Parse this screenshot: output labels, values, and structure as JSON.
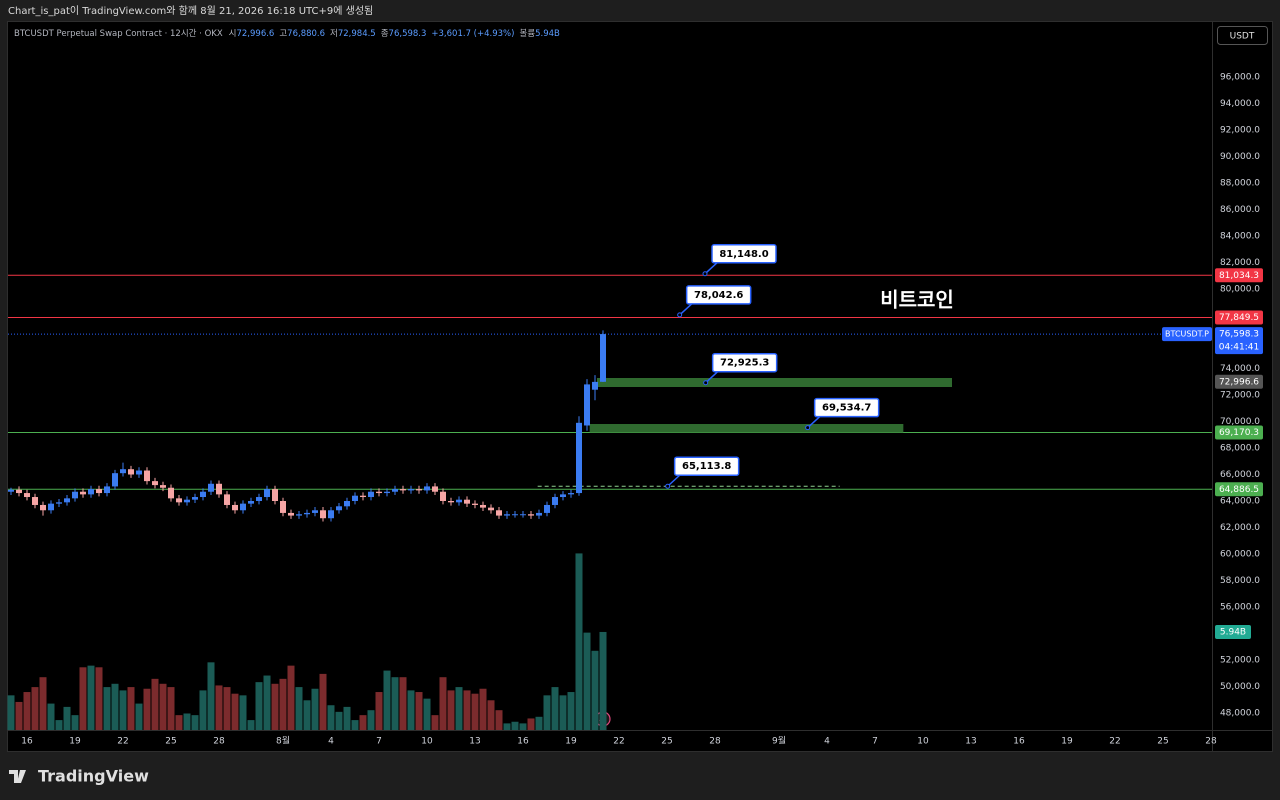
{
  "chart_data": {
    "type": "candlestick",
    "header": "Chart_is_pat이 TradingView.com와 함께 8월 21, 2026 16:18 UTC+9에 생성됨",
    "title": "BTCUSDT Perpetual Swap Contract · 12시간 · OKX",
    "legend": [
      {
        "label": "시",
        "text": "72,996.6"
      },
      {
        "label": "고",
        "text": "76,880.6"
      },
      {
        "label": "저",
        "text": "72,984.5"
      },
      {
        "label": "종",
        "text": "76,598.3"
      }
    ],
    "change": "+3,601.7 (+4.93%)",
    "volume_label": "볼륨",
    "currency": "USDT",
    "annotation": "비트코인",
    "brand": "TradingView",
    "colors": {
      "up": "#3b7cf2",
      "down": "#f6a5a5"
    },
    "x": [
      "2026-07-15T00:00",
      "2026-07-15T12:00",
      "2026-07-16T00:00",
      "2026-07-16T12:00",
      "2026-07-17T00:00",
      "2026-07-17T12:00",
      "2026-07-18T00:00",
      "2026-07-18T12:00",
      "2026-07-19T00:00",
      "2026-07-19T12:00",
      "2026-07-20T00:00",
      "2026-07-20T12:00",
      "2026-07-21T00:00",
      "2026-07-21T12:00",
      "2026-07-22T00:00",
      "2026-07-22T12:00",
      "2026-07-23T00:00",
      "2026-07-23T12:00",
      "2026-07-24T00:00",
      "2026-07-24T12:00",
      "2026-07-25T00:00",
      "2026-07-25T12:00",
      "2026-07-26T00:00",
      "2026-07-26T12:00",
      "2026-07-27T00:00",
      "2026-07-27T12:00",
      "2026-07-28T00:00",
      "2026-07-28T12:00",
      "2026-07-29T00:00",
      "2026-07-29T12:00",
      "2026-07-30T00:00",
      "2026-07-30T12:00",
      "2026-07-31T00:00",
      "2026-07-31T12:00",
      "2026-08-01T00:00",
      "2026-08-01T12:00",
      "2026-08-02T00:00",
      "2026-08-02T12:00",
      "2026-08-03T00:00",
      "2026-08-03T12:00",
      "2026-08-04T00:00",
      "2026-08-04T12:00",
      "2026-08-05T00:00",
      "2026-08-05T12:00",
      "2026-08-06T00:00",
      "2026-08-06T12:00",
      "2026-08-07T00:00",
      "2026-08-07T12:00",
      "2026-08-08T00:00",
      "2026-08-08T12:00",
      "2026-08-09T00:00",
      "2026-08-09T12:00",
      "2026-08-10T00:00",
      "2026-08-10T12:00",
      "2026-08-11T00:00",
      "2026-08-11T12:00",
      "2026-08-12T00:00",
      "2026-08-12T12:00",
      "2026-08-13T00:00",
      "2026-08-13T12:00",
      "2026-08-14T00:00",
      "2026-08-14T12:00",
      "2026-08-15T00:00",
      "2026-08-15T12:00",
      "2026-08-16T00:00",
      "2026-08-16T12:00",
      "2026-08-17T00:00",
      "2026-08-17T12:00",
      "2026-08-18T00:00",
      "2026-08-18T12:00",
      "2026-08-19T00:00",
      "2026-08-19T12:00",
      "2026-08-20T00:00",
      "2026-08-20T12:00",
      "2026-08-21T00:00"
    ],
    "open": [
      64700,
      64850,
      64600,
      64300,
      63700,
      63300,
      63800,
      63900,
      64200,
      64700,
      64500,
      64900,
      64600,
      65100,
      66100,
      66400,
      66000,
      66300,
      65500,
      65200,
      65000,
      64200,
      63900,
      64100,
      64300,
      64700,
      65300,
      64500,
      63700,
      63300,
      63800,
      64000,
      64300,
      64900,
      64000,
      63100,
      62900,
      63000,
      63100,
      63300,
      62700,
      63300,
      63600,
      64000,
      64400,
      64300,
      64700,
      64600,
      64700,
      64900,
      64800,
      64900,
      64800,
      65100,
      64700,
      64000,
      63900,
      64100,
      63800,
      63700,
      63500,
      63300,
      62900,
      63000,
      63000,
      63000,
      62900,
      63100,
      63700,
      64300,
      64500,
      64600,
      69700,
      72400,
      72996.6
    ],
    "high": [
      65000,
      65100,
      64850,
      64550,
      63950,
      64050,
      64150,
      64450,
      64950,
      64950,
      65150,
      65150,
      65350,
      66350,
      66900,
      66650,
      66550,
      66550,
      65750,
      65450,
      65250,
      64450,
      64350,
      64550,
      64950,
      65550,
      65550,
      64750,
      63950,
      64050,
      64250,
      64550,
      65150,
      65150,
      64250,
      63350,
      63250,
      63350,
      63550,
      63550,
      63550,
      63850,
      64250,
      64650,
      64650,
      64950,
      64950,
      64950,
      65150,
      65150,
      65150,
      65150,
      65350,
      65350,
      64950,
      64250,
      64350,
      64350,
      64050,
      63950,
      63750,
      63550,
      63250,
      63250,
      63250,
      63250,
      63350,
      63950,
      64550,
      64750,
      64850,
      70400,
      73200,
      73500,
      76880.6
    ],
    "low": [
      64450,
      64350,
      64050,
      63450,
      62900,
      63050,
      63550,
      63650,
      63950,
      64250,
      64250,
      64350,
      64350,
      64850,
      65850,
      65750,
      65750,
      65250,
      64950,
      64750,
      63950,
      63650,
      63650,
      63850,
      64050,
      64450,
      64250,
      63450,
      63050,
      63050,
      63550,
      63750,
      64050,
      63750,
      62850,
      62650,
      62650,
      62750,
      62850,
      62450,
      62450,
      63050,
      63350,
      63750,
      64050,
      64050,
      64350,
      64350,
      64450,
      64550,
      64550,
      64550,
      64550,
      64450,
      63750,
      63650,
      63650,
      63550,
      63450,
      63250,
      63050,
      62650,
      62650,
      62750,
      62750,
      62650,
      62650,
      62850,
      63450,
      64050,
      64250,
      64400,
      69300,
      71600,
      72984.5
    ],
    "close": [
      64850,
      64600,
      64300,
      63700,
      63300,
      63800,
      63900,
      64200,
      64700,
      64500,
      64900,
      64600,
      65100,
      66100,
      66400,
      66000,
      66300,
      65500,
      65200,
      65000,
      64200,
      63900,
      64100,
      64300,
      64700,
      65300,
      64500,
      63700,
      63300,
      63800,
      64000,
      64300,
      64900,
      64000,
      63100,
      62900,
      63000,
      63100,
      63300,
      62700,
      63300,
      63600,
      64000,
      64400,
      64300,
      64700,
      64600,
      64700,
      64900,
      64800,
      64900,
      64800,
      65100,
      64700,
      64000,
      63900,
      64100,
      63800,
      63700,
      63500,
      63300,
      62900,
      63000,
      63000,
      63000,
      62900,
      63100,
      63700,
      64300,
      64500,
      64600,
      69900,
      72800,
      72990,
      76598.3
    ],
    "volume": {
      "color_up": "#1b5c56",
      "color_down": "#7c2b2d",
      "color_tag": "#22ab94",
      "lim": [
        0,
        42.9
      ],
      "values": [
        2.1,
        1.7,
        2.3,
        2.6,
        3.2,
        1.6,
        0.6,
        1.4,
        0.9,
        3.8,
        3.9,
        3.8,
        2.6,
        2.8,
        2.4,
        2.6,
        1.6,
        2.5,
        3.1,
        2.8,
        2.6,
        0.9,
        1.0,
        0.9,
        2.4,
        4.1,
        2.7,
        2.6,
        2.2,
        2.1,
        0.6,
        2.9,
        3.3,
        2.8,
        3.1,
        3.9,
        2.6,
        1.8,
        2.5,
        3.4,
        1.5,
        1.1,
        1.4,
        0.6,
        0.9,
        1.2,
        2.3,
        3.6,
        3.2,
        3.2,
        2.4,
        2.3,
        1.9,
        0.9,
        3.2,
        2.4,
        2.6,
        2.4,
        2.2,
        2.5,
        1.8,
        1.2,
        0.4,
        0.5,
        0.4,
        0.7,
        0.8,
        2.1,
        2.6,
        2.1,
        2.3,
        10.7,
        5.9,
        4.8,
        5.94
      ],
      "value_labels": [
        null,
        null,
        null,
        null,
        null,
        null,
        null,
        null,
        null,
        null,
        null,
        null,
        null,
        null,
        null,
        null,
        null,
        null,
        null,
        null,
        null,
        null,
        null,
        null,
        null,
        null,
        null,
        null,
        null,
        null,
        null,
        null,
        null,
        null,
        null,
        null,
        null,
        null,
        null,
        null,
        null,
        null,
        null,
        null,
        null,
        null,
        null,
        null,
        null,
        null,
        null,
        null,
        null,
        null,
        null,
        null,
        null,
        null,
        null,
        null,
        null,
        null,
        null,
        null,
        null,
        null,
        null,
        null,
        null,
        null,
        null,
        null,
        null,
        null,
        "5.94B"
      ]
    },
    "xlim": [
      "2026-07-14T19:30",
      "2026-09-28T01:30"
    ],
    "xticks": [
      {
        "value": "2026-07-16T00:00",
        "label": "16"
      },
      {
        "value": "2026-07-19T00:00",
        "label": "19"
      },
      {
        "value": "2026-07-22T00:00",
        "label": "22"
      },
      {
        "value": "2026-07-25T00:00",
        "label": "25"
      },
      {
        "value": "2026-07-28T00:00",
        "label": "28"
      },
      {
        "value": "2026-08-01T00:00",
        "label": "8월"
      },
      {
        "value": "2026-08-04T00:00",
        "label": "4"
      },
      {
        "value": "2026-08-07T00:00",
        "label": "7"
      },
      {
        "value": "2026-08-10T00:00",
        "label": "10"
      },
      {
        "value": "2026-08-13T00:00",
        "label": "13"
      },
      {
        "value": "2026-08-16T00:00",
        "label": "16"
      },
      {
        "value": "2026-08-19T00:00",
        "label": "19"
      },
      {
        "value": "2026-08-22T00:00",
        "label": "22"
      },
      {
        "value": "2026-08-25T00:00",
        "label": "25"
      },
      {
        "value": "2026-08-28T00:00",
        "label": "28"
      },
      {
        "value": "2026-09-01T00:00",
        "label": "9월"
      },
      {
        "value": "2026-09-04T00:00",
        "label": "4"
      },
      {
        "value": "2026-09-07T00:00",
        "label": "7"
      },
      {
        "value": "2026-09-10T00:00",
        "label": "10"
      },
      {
        "value": "2026-09-13T00:00",
        "label": "13"
      },
      {
        "value": "2026-09-16T00:00",
        "label": "16"
      },
      {
        "value": "2026-09-19T00:00",
        "label": "19"
      },
      {
        "value": "2026-09-22T00:00",
        "label": "22"
      },
      {
        "value": "2026-09-25T00:00",
        "label": "25"
      },
      {
        "value": "2026-09-28T00:00",
        "label": "28"
      }
    ],
    "ylim": [
      46717,
      100151
    ],
    "yticks": [
      {
        "value": 96000,
        "label": "96,000.0"
      },
      {
        "value": 94000,
        "label": "94,000.0"
      },
      {
        "value": 92000,
        "label": "92,000.0"
      },
      {
        "value": 90000,
        "label": "90,000.0"
      },
      {
        "value": 88000,
        "label": "88,000.0"
      },
      {
        "value": 86000,
        "label": "86,000.0"
      },
      {
        "value": 84000,
        "label": "84,000.0"
      },
      {
        "value": 82000,
        "label": "82,000.0"
      },
      {
        "value": 80000,
        "label": "80,000.0"
      },
      {
        "value": 74000,
        "label": "74,000.0"
      },
      {
        "value": 72000,
        "label": "72,000.0"
      },
      {
        "value": 70000,
        "label": "70,000.0"
      },
      {
        "value": 68000,
        "label": "68,000.0"
      },
      {
        "value": 66000,
        "label": "66,000.0"
      },
      {
        "value": 64000,
        "label": "64,000.0"
      },
      {
        "value": 62000,
        "label": "62,000.0"
      },
      {
        "value": 60000,
        "label": "60,000.0"
      },
      {
        "value": 58000,
        "label": "58,000.0"
      },
      {
        "value": 56000,
        "label": "56,000.0"
      },
      {
        "value": 52000,
        "label": "52,000.0"
      },
      {
        "value": 50000,
        "label": "50,000.0"
      },
      {
        "value": 48000,
        "label": "48,000.0"
      }
    ],
    "price_lines": [
      {
        "value": 81034.3,
        "label": "81,034.3",
        "color": "#f23645"
      },
      {
        "value": 77849.5,
        "label": "77,849.5",
        "color": "#f23645"
      },
      {
        "value": 69170.3,
        "label": "69,170.3",
        "color": "#4caf50"
      },
      {
        "value": 64886.5,
        "label": "64,886.5",
        "color": "#4caf50"
      }
    ],
    "price_tags": [
      {
        "value": 72996.6,
        "label": "72,996.6",
        "color": "#555555"
      }
    ],
    "last_price": {
      "value": 76598.3,
      "label": "76,598.3",
      "symbol": "BTCUSDT.P",
      "countdown": "04:41:41",
      "color": "#2962ff"
    },
    "zones": [
      {
        "low": 72604,
        "high": 73283,
        "start": "2026-08-20T15:00",
        "end": "2026-09-11T19:30",
        "color": "#2f6a2f"
      },
      {
        "low": 69170.3,
        "high": 69811,
        "start": "2026-08-20T04:00",
        "end": "2026-09-08T18:30",
        "color": "#2f6a2f"
      }
    ],
    "segments": [
      {
        "value": 65113.8,
        "start": "2026-08-16T22:00",
        "end": "2026-09-04T19:00",
        "color": "#8fd18f"
      }
    ],
    "callouts": [
      {
        "value": 81148.0,
        "label": "81,148.0",
        "time": "2026-08-27T09:00"
      },
      {
        "value": 78042.6,
        "label": "78,042.6",
        "time": "2026-08-25T19:00"
      },
      {
        "value": 72925.3,
        "label": "72,925.3",
        "time": "2026-08-27T10:00"
      },
      {
        "value": 69534.7,
        "label": "69,534.7",
        "time": "2026-09-02T19:00"
      },
      {
        "value": 65113.8,
        "label": "65,113.8",
        "time": "2026-08-25T01:00"
      }
    ]
  }
}
